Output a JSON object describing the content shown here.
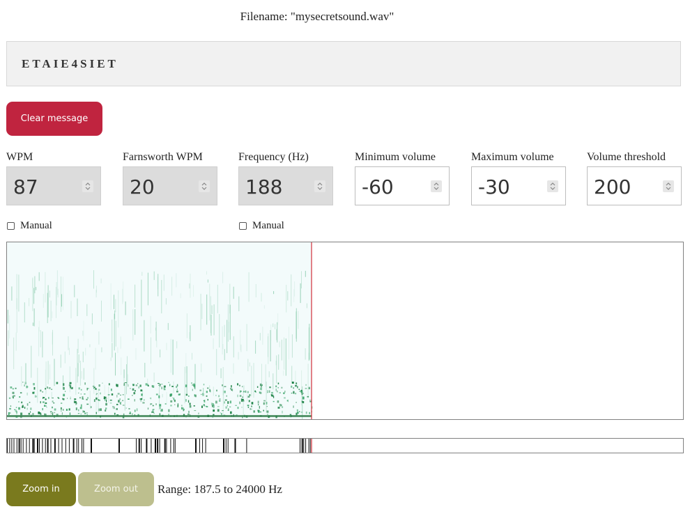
{
  "filename_text": "Filename: \"mysecretsound.wav\"",
  "message": "ETAIE4SIET",
  "buttons": {
    "clear": "Clear message",
    "zoom_in": "Zoom in",
    "zoom_out": "Zoom out"
  },
  "fields": [
    {
      "label": "WPM",
      "value": "87",
      "disabled": true
    },
    {
      "label": "Farnsworth WPM",
      "value": "20",
      "disabled": true
    },
    {
      "label": "Frequency (Hz)",
      "value": "188",
      "disabled": true
    },
    {
      "label": "Minimum volume",
      "value": "-60",
      "disabled": false
    },
    {
      "label": "Maximum volume",
      "value": "-30",
      "disabled": false
    },
    {
      "label": "Volume threshold",
      "value": "200",
      "disabled": false
    }
  ],
  "checkboxes": [
    {
      "label": "Manual",
      "checked": false
    },
    {
      "label": "Manual",
      "checked": false
    }
  ],
  "range_text": "Range: 187.5 to 24000 Hz",
  "playback_progress": 0.45,
  "colors": {
    "accent_red": "#c0243f",
    "zoom_in": "#7a7a1e",
    "zoom_out": "#bdbf8e",
    "spectrogram_green": "#0f7a3a",
    "cursor": "#d0303a"
  }
}
